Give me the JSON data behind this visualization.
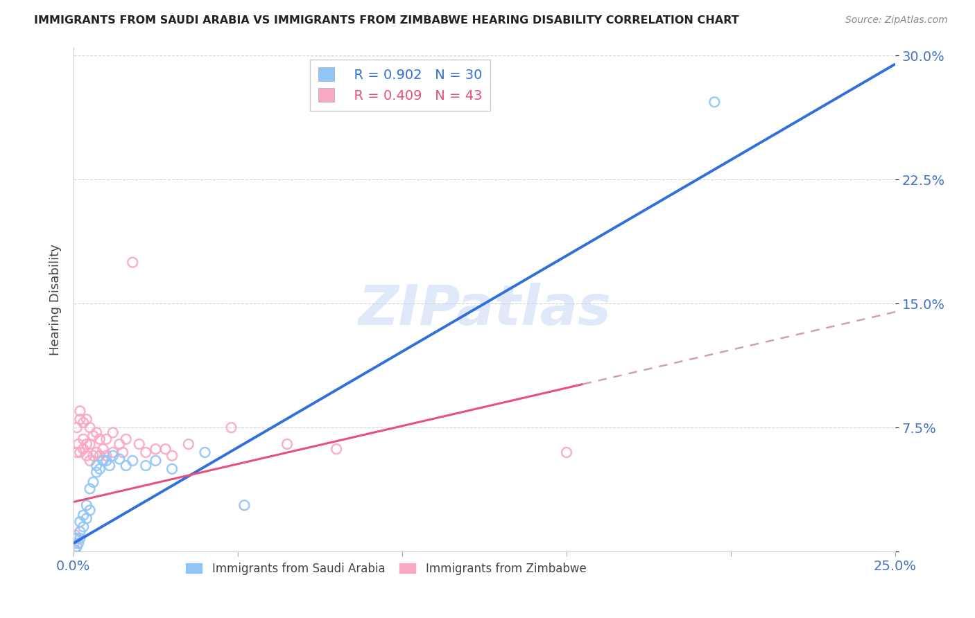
{
  "title": "IMMIGRANTS FROM SAUDI ARABIA VS IMMIGRANTS FROM ZIMBABWE HEARING DISABILITY CORRELATION CHART",
  "source": "Source: ZipAtlas.com",
  "ylabel": "Hearing Disability",
  "legend_blue_R": "R = 0.902",
  "legend_blue_N": "N = 30",
  "legend_pink_R": "R = 0.409",
  "legend_pink_N": "N = 43",
  "legend_label_blue": "Immigrants from Saudi Arabia",
  "legend_label_pink": "Immigrants from Zimbabwe",
  "blue_scatter_color": "#92C5F7",
  "pink_scatter_color": "#F9A8C4",
  "line_blue_color": "#3070D8",
  "line_pink_color": "#E8507A",
  "line_pink_dash_color": "#D0A0B0",
  "watermark": "ZIPatlas",
  "xlim": [
    0.0,
    0.25
  ],
  "ylim": [
    0.0,
    0.305
  ],
  "yticks": [
    0.0,
    0.075,
    0.15,
    0.225,
    0.3
  ],
  "ytick_labels": [
    "",
    "7.5%",
    "15.0%",
    "22.5%",
    "30.0%"
  ],
  "xticks": [
    0.0,
    0.05,
    0.1,
    0.15,
    0.2,
    0.25
  ],
  "xtick_labels_show": [
    "0.0%",
    "",
    "",
    "",
    "",
    "25.0%"
  ],
  "blue_line_x": [
    0.0,
    0.25
  ],
  "blue_line_y": [
    0.005,
    0.295
  ],
  "pink_line_x": [
    0.0,
    0.25
  ],
  "pink_line_y": [
    0.03,
    0.145
  ],
  "saudi_x": [
    0.0005,
    0.001,
    0.001,
    0.0015,
    0.002,
    0.002,
    0.002,
    0.003,
    0.003,
    0.004,
    0.004,
    0.005,
    0.005,
    0.006,
    0.007,
    0.007,
    0.008,
    0.009,
    0.01,
    0.011,
    0.012,
    0.014,
    0.016,
    0.018,
    0.022,
    0.025,
    0.03,
    0.04,
    0.052,
    0.195
  ],
  "saudi_y": [
    0.001,
    0.003,
    0.008,
    0.005,
    0.008,
    0.012,
    0.018,
    0.015,
    0.022,
    0.02,
    0.028,
    0.025,
    0.038,
    0.042,
    0.048,
    0.052,
    0.05,
    0.055,
    0.055,
    0.052,
    0.058,
    0.056,
    0.052,
    0.055,
    0.052,
    0.055,
    0.05,
    0.06,
    0.028,
    0.272
  ],
  "zimb_x": [
    0.0002,
    0.0005,
    0.0008,
    0.001,
    0.001,
    0.0015,
    0.002,
    0.002,
    0.002,
    0.003,
    0.003,
    0.003,
    0.004,
    0.004,
    0.004,
    0.005,
    0.005,
    0.005,
    0.006,
    0.006,
    0.007,
    0.007,
    0.008,
    0.008,
    0.009,
    0.01,
    0.01,
    0.012,
    0.012,
    0.014,
    0.015,
    0.016,
    0.018,
    0.02,
    0.022,
    0.025,
    0.028,
    0.03,
    0.035,
    0.048,
    0.065,
    0.08,
    0.15
  ],
  "zimb_y": [
    0.005,
    0.01,
    0.008,
    0.06,
    0.075,
    0.065,
    0.06,
    0.08,
    0.085,
    0.062,
    0.068,
    0.078,
    0.058,
    0.065,
    0.08,
    0.055,
    0.065,
    0.075,
    0.058,
    0.07,
    0.06,
    0.072,
    0.058,
    0.068,
    0.062,
    0.058,
    0.068,
    0.06,
    0.072,
    0.065,
    0.06,
    0.068,
    0.175,
    0.065,
    0.06,
    0.062,
    0.062,
    0.058,
    0.065,
    0.075,
    0.065,
    0.062,
    0.06
  ]
}
